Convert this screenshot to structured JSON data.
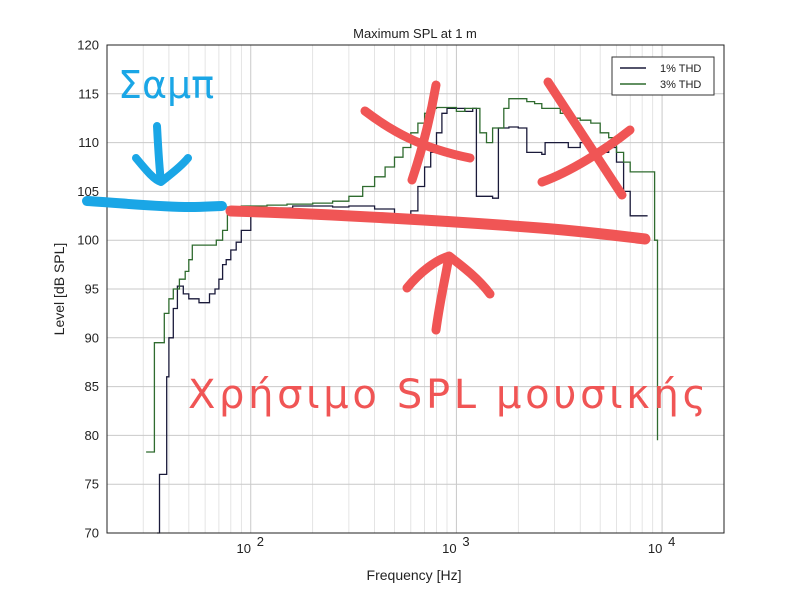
{
  "chart_data": {
    "type": "line",
    "title": "Maximum SPL at 1 m",
    "xlabel": "Frequency [Hz]",
    "ylabel": "Level [dB SPL]",
    "xscale": "log",
    "xlim": [
      20,
      20000
    ],
    "ylim": [
      70,
      120
    ],
    "yticks": [
      70,
      75,
      80,
      85,
      90,
      95,
      100,
      105,
      110,
      115,
      120
    ],
    "ytick_labels": [
      "70",
      "75",
      "80",
      "85",
      "90",
      "95",
      "100",
      "105",
      "110",
      "115",
      "120"
    ],
    "xticks": [
      {
        "base": "10",
        "exp": "2",
        "value": 100
      },
      {
        "base": "10",
        "exp": "3",
        "value": 1000
      },
      {
        "base": "10",
        "exp": "4",
        "value": 10000
      }
    ],
    "grid": true,
    "legend_position": "top-right",
    "series": [
      {
        "name": "1% THD",
        "color": "#1a1a3a",
        "points": [
          [
            35,
            70
          ],
          [
            36,
            76
          ],
          [
            38,
            76
          ],
          [
            39,
            86
          ],
          [
            40,
            90
          ],
          [
            42,
            93
          ],
          [
            44,
            95.3
          ],
          [
            47,
            94.5
          ],
          [
            50,
            94
          ],
          [
            53,
            94
          ],
          [
            56,
            93.6
          ],
          [
            60,
            93.6
          ],
          [
            63,
            94.5
          ],
          [
            67,
            95
          ],
          [
            70,
            96
          ],
          [
            73,
            97.5
          ],
          [
            76,
            98
          ],
          [
            80,
            99
          ],
          [
            85,
            99.8
          ],
          [
            90,
            101
          ],
          [
            100,
            103
          ],
          [
            110,
            103.3
          ],
          [
            120,
            103.2
          ],
          [
            140,
            103.3
          ],
          [
            160,
            103.5
          ],
          [
            180,
            103.5
          ],
          [
            200,
            103.5
          ],
          [
            250,
            103.4
          ],
          [
            300,
            103.5
          ],
          [
            400,
            103.2
          ],
          [
            500,
            102.6
          ],
          [
            600,
            103
          ],
          [
            650,
            105.5
          ],
          [
            700,
            107.5
          ],
          [
            750,
            109
          ],
          [
            800,
            111
          ],
          [
            850,
            113
          ],
          [
            900,
            113.5
          ],
          [
            1000,
            113.5
          ],
          [
            1100,
            113.2
          ],
          [
            1200,
            113.5
          ],
          [
            1250,
            104.5
          ],
          [
            1400,
            104.5
          ],
          [
            1500,
            104.3
          ],
          [
            1600,
            111.5
          ],
          [
            1800,
            111.6
          ],
          [
            2000,
            111.5
          ],
          [
            2200,
            109
          ],
          [
            2600,
            108.8
          ],
          [
            2700,
            110
          ],
          [
            3000,
            110
          ],
          [
            3500,
            109.5
          ],
          [
            4000,
            110
          ],
          [
            4500,
            109.3
          ],
          [
            5000,
            109
          ],
          [
            5500,
            109.5
          ],
          [
            6000,
            108
          ],
          [
            6500,
            105
          ],
          [
            7000,
            102.5
          ],
          [
            8500,
            102.5
          ]
        ]
      },
      {
        "name": "3% THD",
        "color": "#2f6b2f",
        "points": [
          [
            31,
            78.3
          ],
          [
            33,
            78.3
          ],
          [
            34,
            89.5
          ],
          [
            37,
            89.5
          ],
          [
            38,
            92.5
          ],
          [
            40,
            94
          ],
          [
            42,
            95
          ],
          [
            45,
            96
          ],
          [
            48,
            96.8
          ],
          [
            50,
            98
          ],
          [
            52,
            99.5
          ],
          [
            55,
            99.5
          ],
          [
            60,
            99.5
          ],
          [
            64,
            99.5
          ],
          [
            68,
            100
          ],
          [
            73,
            101
          ],
          [
            77,
            103.4
          ],
          [
            80,
            103.4
          ],
          [
            90,
            103.5
          ],
          [
            100,
            103.5
          ],
          [
            120,
            103.6
          ],
          [
            150,
            103.7
          ],
          [
            200,
            103.8
          ],
          [
            250,
            104
          ],
          [
            300,
            104.5
          ],
          [
            350,
            105.5
          ],
          [
            400,
            106.5
          ],
          [
            450,
            107.5
          ],
          [
            500,
            108.5
          ],
          [
            550,
            109.5
          ],
          [
            600,
            111
          ],
          [
            650,
            112
          ],
          [
            700,
            113
          ],
          [
            750,
            113.5
          ],
          [
            800,
            113.6
          ],
          [
            900,
            113.6
          ],
          [
            1000,
            113.2
          ],
          [
            1100,
            113.5
          ],
          [
            1200,
            113.5
          ],
          [
            1300,
            111
          ],
          [
            1400,
            110
          ],
          [
            1500,
            111.5
          ],
          [
            1700,
            113.5
          ],
          [
            1800,
            114.5
          ],
          [
            2000,
            114.5
          ],
          [
            2200,
            114.2
          ],
          [
            2400,
            114
          ],
          [
            2600,
            113.5
          ],
          [
            2800,
            113.5
          ],
          [
            3200,
            113
          ],
          [
            3600,
            112.5
          ],
          [
            4000,
            112.3
          ],
          [
            4500,
            112
          ],
          [
            5000,
            111
          ],
          [
            5500,
            110.5
          ],
          [
            6000,
            109
          ],
          [
            6500,
            108
          ],
          [
            7000,
            107
          ],
          [
            8000,
            107
          ],
          [
            8800,
            107
          ],
          [
            9200,
            100
          ],
          [
            9500,
            79.5
          ]
        ]
      }
    ],
    "annotations": [
      {
        "id": "saub-label",
        "text": "Σαμπ",
        "color": "#1aa6e6"
      },
      {
        "id": "useful-spl-label",
        "text": "Χρήσιμο SPL μουσικής",
        "color": "#f05555"
      }
    ]
  }
}
